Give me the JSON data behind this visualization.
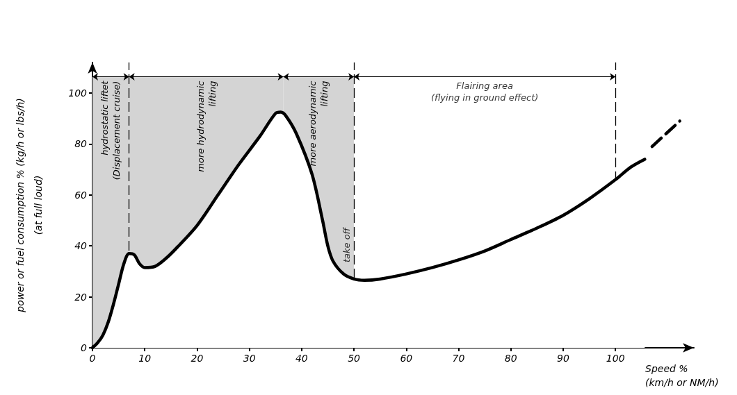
{
  "chart_data": {
    "type": "line",
    "xlabel": "Speed %\n(km/h or NM/h)",
    "ylabel": "power or fuel consumption % (kg/h or lbs/h)\n(at full loud)",
    "xlim": [
      0,
      115
    ],
    "ylim": [
      0,
      112
    ],
    "xticks": [
      0,
      10,
      20,
      30,
      40,
      50,
      60,
      70,
      80,
      90,
      100
    ],
    "yticks": [
      0,
      20,
      40,
      60,
      80,
      100
    ],
    "grid": false,
    "marker": "none",
    "series": [
      {
        "color": "#000000",
        "line_style": "solid",
        "x": [
          0,
          1,
          2,
          3,
          4,
          5,
          6,
          7,
          8,
          9,
          10,
          12,
          14,
          16,
          20,
          24,
          28,
          32,
          35,
          36,
          37,
          39,
          42,
          44,
          45,
          46,
          48,
          50,
          52,
          55,
          60,
          65,
          70,
          75,
          80,
          85,
          90,
          95,
          100,
          103,
          105.6
        ],
        "values": [
          0,
          2,
          5,
          10,
          17,
          25,
          33,
          37,
          36.5,
          33,
          31.5,
          32,
          35,
          39,
          48,
          60,
          72,
          83,
          92,
          92.5,
          91,
          84,
          68,
          50,
          40,
          34,
          29,
          27,
          26.5,
          27,
          29,
          31.5,
          34.5,
          38,
          42.5,
          47,
          52,
          58.5,
          66,
          71,
          74
        ]
      },
      {
        "color": "#000000",
        "line_style": "dashed",
        "x": [
          107,
          112.3
        ],
        "values": [
          79,
          89
        ]
      }
    ],
    "bands": [
      {
        "axis": "x",
        "from": 0,
        "to": 7,
        "label": "hydrostatic liftet\n(Displacement cruise)",
        "color": "#d4d4d4"
      },
      {
        "axis": "x",
        "from": 7,
        "to": 36.5,
        "label": "more hydrodynamic\nlifting",
        "color": "#d4d4d4"
      },
      {
        "axis": "x",
        "from": 36.5,
        "to": 50,
        "label": "more aerodynamic\nlifting",
        "color": "#d4d4d4"
      }
    ],
    "ref_lines": [
      {
        "axis": "x",
        "value": 7,
        "line_style": "dashed"
      },
      {
        "axis": "x",
        "value": 50,
        "line_style": "dashed"
      },
      {
        "axis": "x",
        "value": 100,
        "line_style": "dashed"
      }
    ],
    "annotations": [
      "Flairing area\n(flying in ground effect)",
      "take off"
    ]
  }
}
